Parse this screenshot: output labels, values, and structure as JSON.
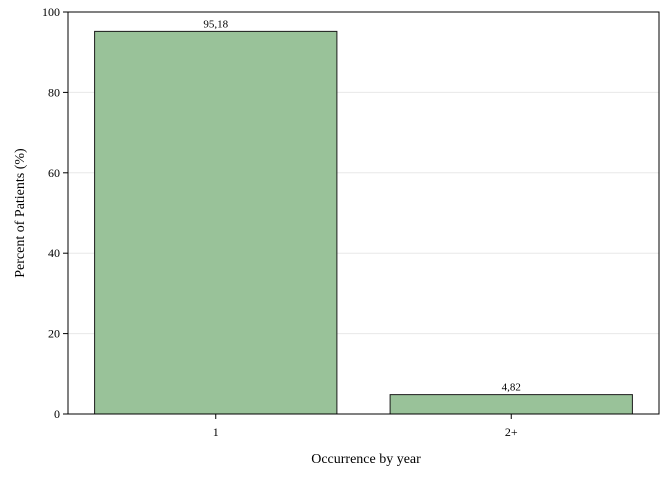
{
  "chart_data": {
    "type": "bar",
    "categories": [
      "1",
      "2+"
    ],
    "values": [
      95.18,
      4.82
    ],
    "data_labels": [
      "95,18",
      "4,82"
    ],
    "xlabel": "Occurrence by year",
    "ylabel": "Percent of Patients (%)",
    "ylim": [
      0,
      100
    ],
    "yticks": [
      0,
      20,
      40,
      60,
      80,
      100
    ],
    "grid": true,
    "legend": "none",
    "colors": {
      "bar_fill": "#99c299",
      "bar_stroke": "#1a1a1a",
      "grid": "#e8e8e8",
      "axis": "#000000"
    }
  }
}
